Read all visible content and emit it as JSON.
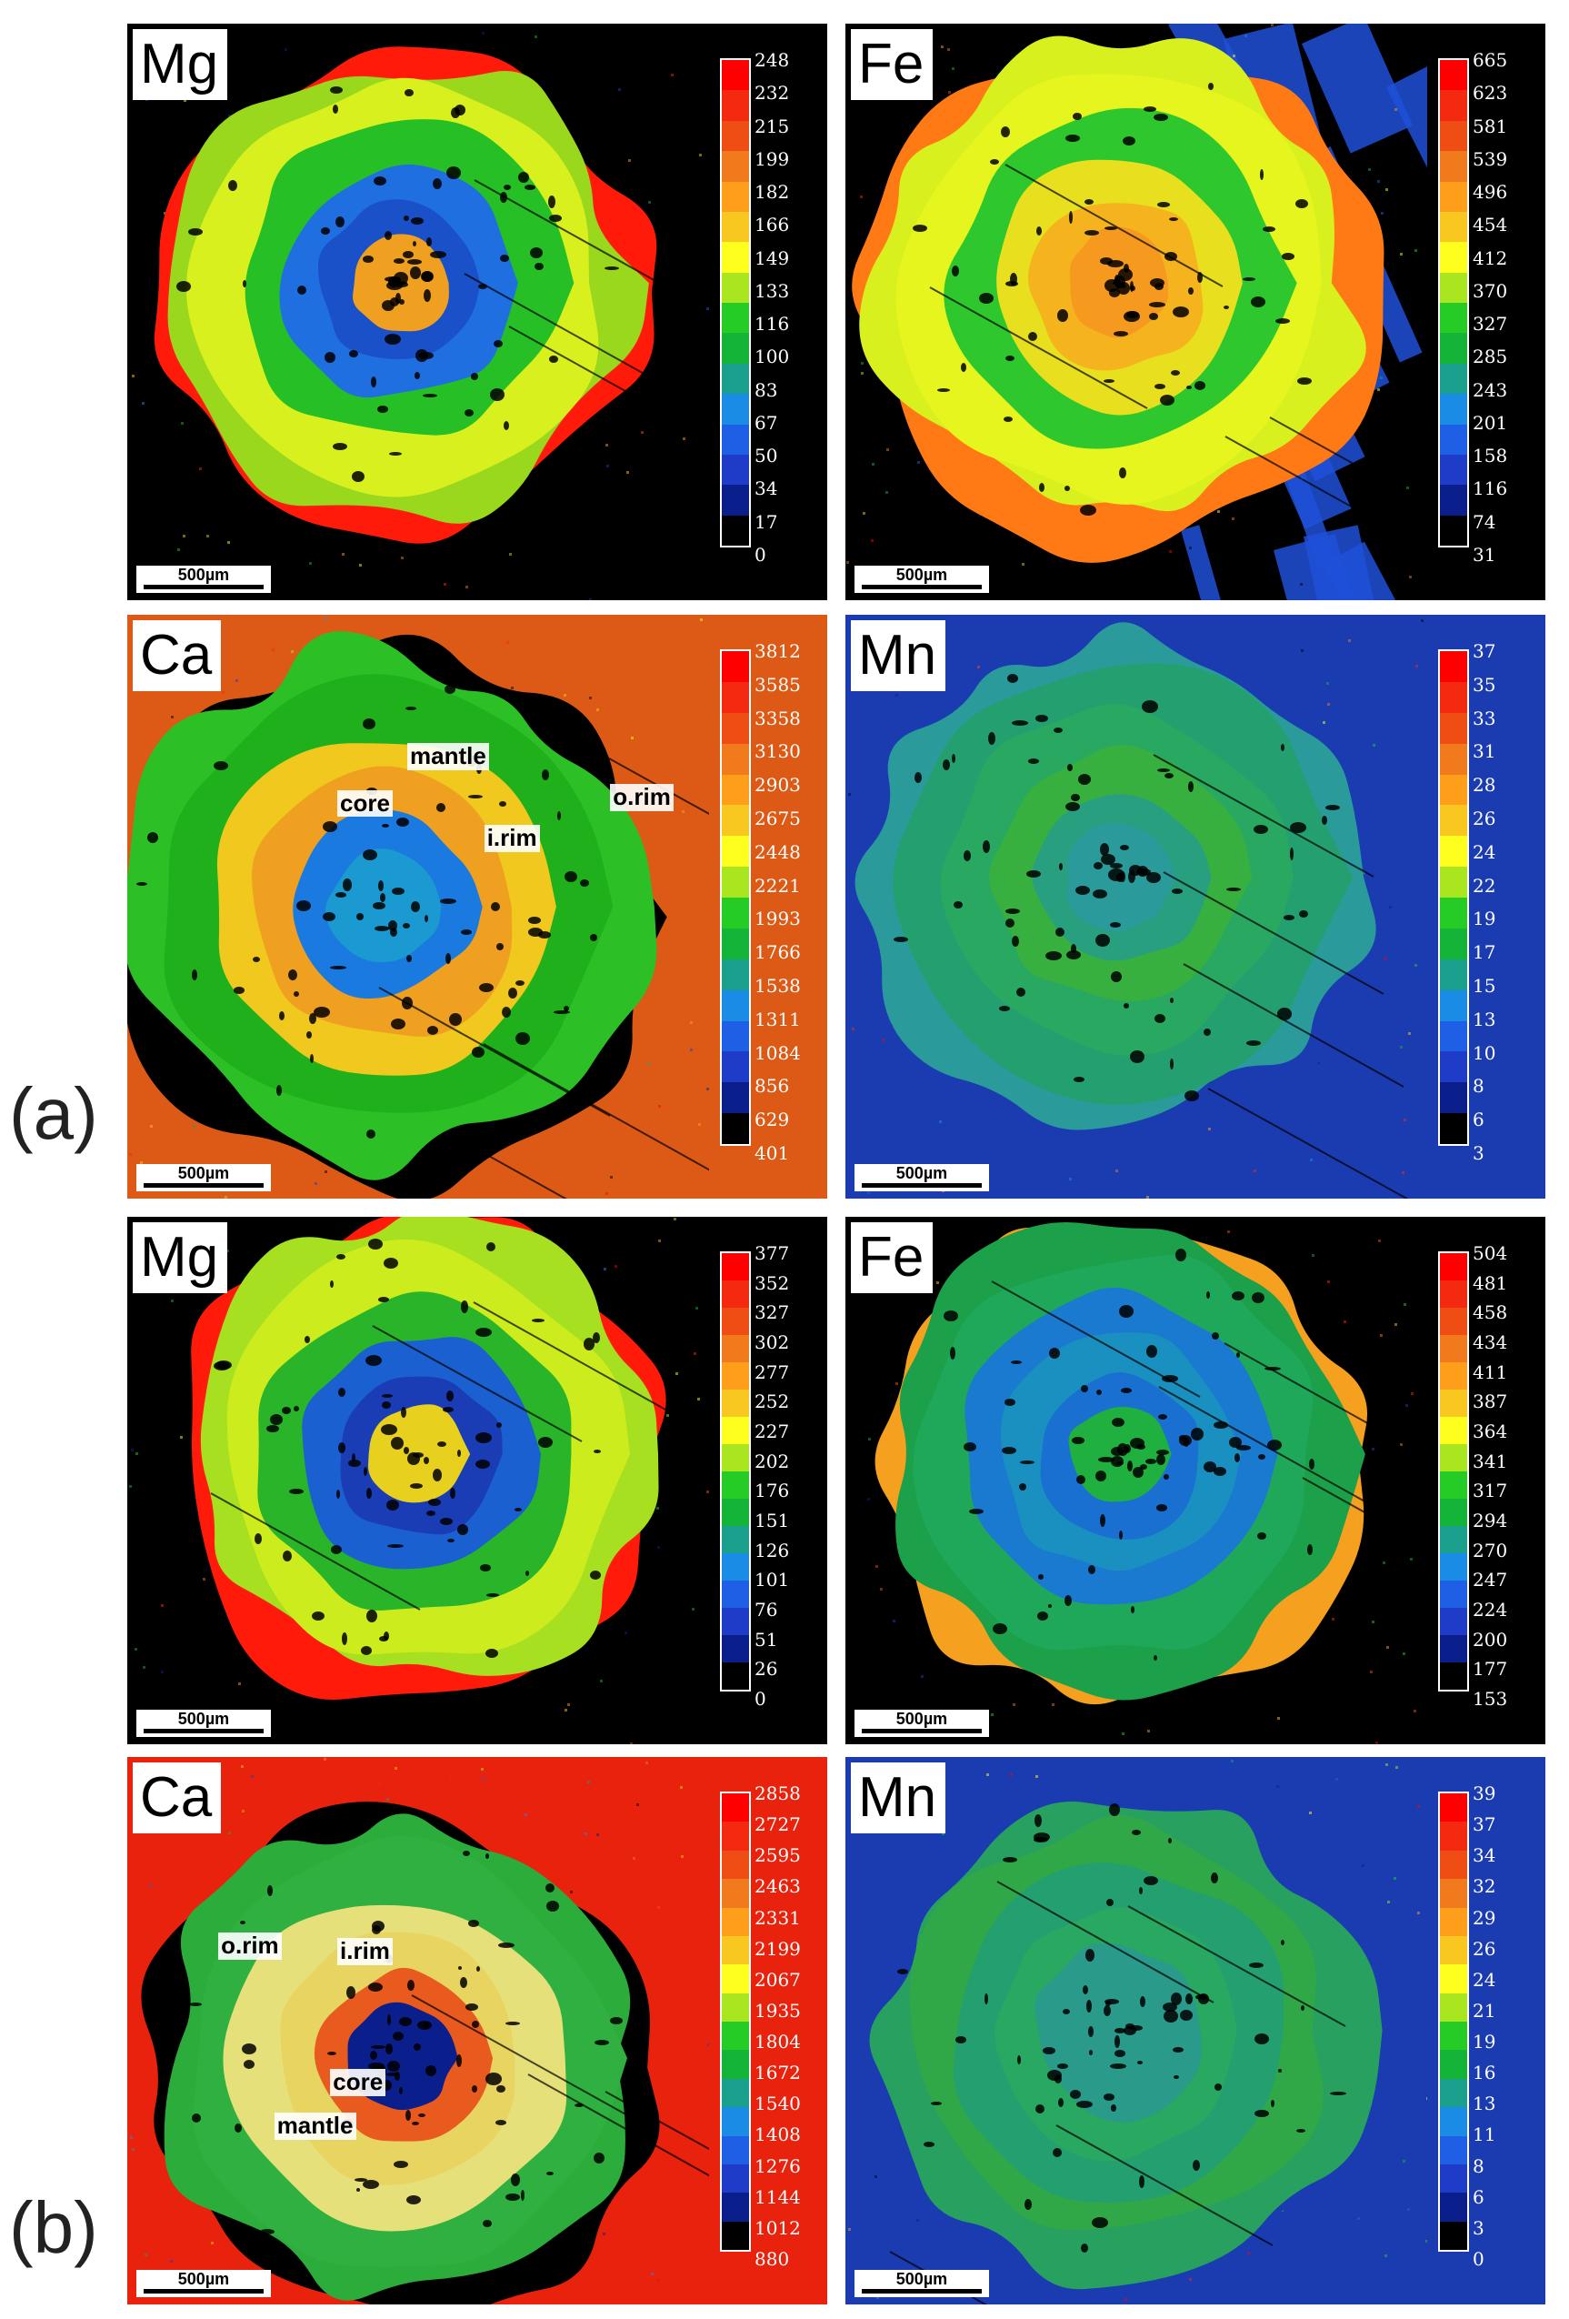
{
  "figure": {
    "group_labels": [
      "(a)",
      "(b)"
    ],
    "scale_bar_label": "500µm",
    "colors": {
      "ramp": [
        "#ff0000",
        "#f32a10",
        "#ee4e14",
        "#f07a1c",
        "#ff9e1a",
        "#f9c820",
        "#ffff1e",
        "#aae620",
        "#26cc26",
        "#14b439",
        "#1aa08c",
        "#1a8ce6",
        "#1e5fe6",
        "#1e3cc8",
        "#0a1e8c",
        "#000000"
      ],
      "background_black": "#000000",
      "background_red": "#e8220c",
      "background_orange": "#e0601a",
      "background_blue": "#1a3cb0"
    },
    "panels": [
      {
        "id": "a-mg",
        "element": "Mg",
        "ticks": [
          "248",
          "232",
          "215",
          "199",
          "182",
          "166",
          "149",
          "133",
          "116",
          "100",
          "83",
          "67",
          "50",
          "34",
          "17",
          "0"
        ],
        "zones": []
      },
      {
        "id": "a-fe",
        "element": "Fe",
        "ticks": [
          "665",
          "623",
          "581",
          "539",
          "496",
          "454",
          "412",
          "370",
          "327",
          "285",
          "243",
          "201",
          "158",
          "116",
          "74",
          "31"
        ],
        "zones": []
      },
      {
        "id": "a-ca",
        "element": "Ca",
        "ticks": [
          "3812",
          "3585",
          "3358",
          "3130",
          "2903",
          "2675",
          "2448",
          "2221",
          "1993",
          "1766",
          "1538",
          "1311",
          "1084",
          "856",
          "629",
          "401"
        ],
        "zones": [
          "mantle",
          "core",
          "o.rim",
          "i.rim"
        ]
      },
      {
        "id": "a-mn",
        "element": "Mn",
        "ticks": [
          "37",
          "35",
          "33",
          "31",
          "28",
          "26",
          "24",
          "22",
          "19",
          "17",
          "15",
          "13",
          "10",
          "8",
          "6",
          "3"
        ],
        "zones": []
      },
      {
        "id": "b-mg",
        "element": "Mg",
        "ticks": [
          "377",
          "352",
          "327",
          "302",
          "277",
          "252",
          "227",
          "202",
          "176",
          "151",
          "126",
          "101",
          "76",
          "51",
          "26",
          "0"
        ],
        "zones": []
      },
      {
        "id": "b-fe",
        "element": "Fe",
        "ticks": [
          "504",
          "481",
          "458",
          "434",
          "411",
          "387",
          "364",
          "341",
          "317",
          "294",
          "270",
          "247",
          "224",
          "200",
          "177",
          "153"
        ],
        "zones": []
      },
      {
        "id": "b-ca",
        "element": "Ca",
        "ticks": [
          "2858",
          "2727",
          "2595",
          "2463",
          "2331",
          "2199",
          "2067",
          "1935",
          "1804",
          "1672",
          "1540",
          "1408",
          "1276",
          "1144",
          "1012",
          "880"
        ],
        "zones": [
          "o.rim",
          "i.rim",
          "core",
          "mantle"
        ]
      },
      {
        "id": "b-mn",
        "element": "Mn",
        "ticks": [
          "39",
          "37",
          "34",
          "32",
          "29",
          "26",
          "24",
          "21",
          "19",
          "16",
          "13",
          "11",
          "8",
          "6",
          "3",
          "0"
        ],
        "zones": []
      }
    ]
  }
}
